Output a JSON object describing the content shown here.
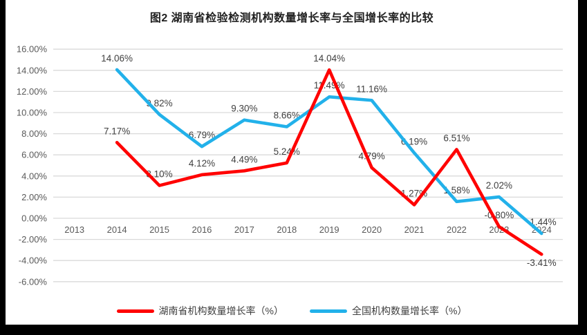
{
  "window": {
    "background": "#000000",
    "panel_background": "#ffffff"
  },
  "title": "图2 湖南省检验检测机构数量增长率与全国增长率的比较",
  "chart_data": {
    "type": "line",
    "title": "图2 湖南省检验检测机构数量增长率与全国增长率的比较",
    "categories": [
      "2013",
      "2014",
      "2015",
      "2016",
      "2017",
      "2018",
      "2019",
      "2020",
      "2021",
      "2022",
      "2023",
      "2024"
    ],
    "series": [
      {
        "name": "湖南省机构数量增长率（%）",
        "color": "#FF0000",
        "values": [
          null,
          7.17,
          3.1,
          4.12,
          4.49,
          5.24,
          14.04,
          4.79,
          1.27,
          6.51,
          -0.8,
          -3.41
        ],
        "labels": [
          "",
          "7.17%",
          "3.10%",
          "4.12%",
          "4.49%",
          "5.24%",
          "14.04%",
          "4.79%",
          "1.27%",
          "6.51%",
          "-0.80%",
          "-3.41%"
        ]
      },
      {
        "name": "全国机构数量增长率（%）",
        "color": "#22B1EA",
        "values": [
          null,
          14.06,
          9.82,
          6.79,
          9.3,
          8.66,
          11.49,
          11.16,
          6.19,
          1.58,
          2.02,
          -1.44
        ],
        "labels": [
          "",
          "14.06%",
          "9.82%",
          "6.79%",
          "9.30%",
          "8.66%",
          "11.49%",
          "11.16%",
          "6.19%",
          "1.58%",
          "2.02%",
          "-1.44%"
        ]
      }
    ],
    "y_axis": {
      "min": -6,
      "max": 16,
      "step": 2,
      "tick_labels": [
        "16.00%",
        "14.00%",
        "12.00%",
        "10.00%",
        "8.00%",
        "6.00%",
        "4.00%",
        "2.00%",
        "0.00%",
        "-2.00%",
        "-4.00%",
        "-6.00%"
      ]
    },
    "grid": true,
    "legend_position": "bottom",
    "label_exceptions": [
      {
        "series_index": 0,
        "category": "2024",
        "position": "below"
      }
    ],
    "colors": {
      "gridline": "#D9D9D9",
      "axis_text": "#595959",
      "data_label_text": "#3F3F3F",
      "title_text": "#1F1F1F"
    }
  }
}
